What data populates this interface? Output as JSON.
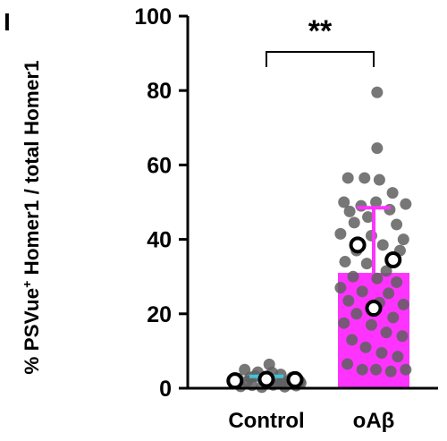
{
  "panel_label": "I",
  "chart_data": {
    "type": "bar",
    "ylabel_prefix": "% PSVue",
    "ylabel_sup": "+",
    "ylabel_suffix": " Homer1 / total Homer1",
    "ylim": [
      0,
      100
    ],
    "yticks": [
      0,
      20,
      40,
      60,
      80,
      100
    ],
    "categories": [
      "Control",
      "oAβ"
    ],
    "bars": [
      {
        "category": "Control",
        "mean": 2.0,
        "sd": 1.2,
        "color": "#40c4d8"
      },
      {
        "category": "oAβ",
        "mean": 31.0,
        "sd": 17.5,
        "color": "#ff33ff"
      }
    ],
    "significance": "**",
    "points": [
      {
        "category": "Control",
        "x": -0.5,
        "y": 2.6
      },
      {
        "category": "Control",
        "x": -0.34,
        "y": 1.8
      },
      {
        "category": "Control",
        "x": -0.2,
        "y": 3.3
      },
      {
        "category": "Control",
        "x": -0.05,
        "y": 2.2
      },
      {
        "category": "Control",
        "x": 0.1,
        "y": 4.2
      },
      {
        "category": "Control",
        "x": 0.28,
        "y": 1.5
      },
      {
        "category": "Control",
        "x": 0.45,
        "y": 2.9
      },
      {
        "category": "Control",
        "x": 0.58,
        "y": 1.9
      },
      {
        "category": "Control",
        "x": -0.45,
        "y": 0.5
      },
      {
        "category": "Control",
        "x": -0.25,
        "y": 0.8
      },
      {
        "category": "Control",
        "x": -0.08,
        "y": 0.3
      },
      {
        "category": "Control",
        "x": 0.12,
        "y": 0.9
      },
      {
        "category": "Control",
        "x": 0.32,
        "y": 0.4
      },
      {
        "category": "Control",
        "x": 0.52,
        "y": 0.7
      },
      {
        "category": "Control",
        "x": -0.38,
        "y": 5.0
      },
      {
        "category": "Control",
        "x": -0.15,
        "y": 4.3
      },
      {
        "category": "Control",
        "x": 0.05,
        "y": 6.4
      },
      {
        "category": "Control",
        "x": 0.25,
        "y": 3.7
      },
      {
        "category": "Control",
        "x": 0.4,
        "y": 2.1
      },
      {
        "category": "Control",
        "x": -0.55,
        "y": 1.2
      },
      {
        "category": "Control",
        "x": 0.6,
        "y": 1.4
      },
      {
        "category": "Control",
        "x": -0.28,
        "y": 2.9
      },
      {
        "category": "Control",
        "x": 0.18,
        "y": 1.6
      },
      {
        "category": "oAβ",
        "x": 0.06,
        "y": 79.5
      },
      {
        "category": "oAβ",
        "x": 0.06,
        "y": 64.5
      },
      {
        "category": "oAβ",
        "x": -0.45,
        "y": 56.5
      },
      {
        "category": "oAβ",
        "x": -0.16,
        "y": 56.5
      },
      {
        "category": "oAβ",
        "x": 0.1,
        "y": 56.0
      },
      {
        "category": "oAβ",
        "x": -0.52,
        "y": 50.0
      },
      {
        "category": "oAβ",
        "x": -0.22,
        "y": 49.0
      },
      {
        "category": "oAβ",
        "x": 0.04,
        "y": 50.0
      },
      {
        "category": "oAβ",
        "x": 0.33,
        "y": 52.5
      },
      {
        "category": "oAβ",
        "x": 0.56,
        "y": 49.5
      },
      {
        "category": "oAβ",
        "x": -0.42,
        "y": 47.5
      },
      {
        "category": "oAβ",
        "x": -0.1,
        "y": 46.0
      },
      {
        "category": "oAβ",
        "x": 0.28,
        "y": 48.0
      },
      {
        "category": "oAβ",
        "x": -0.34,
        "y": 44.5
      },
      {
        "category": "oAβ",
        "x": 0.4,
        "y": 44.0
      },
      {
        "category": "oAβ",
        "x": -0.58,
        "y": 41.5
      },
      {
        "category": "oAβ",
        "x": -0.04,
        "y": 41.0
      },
      {
        "category": "oAβ",
        "x": 0.52,
        "y": 40.0
      },
      {
        "category": "oAβ",
        "x": -0.3,
        "y": 37.0
      },
      {
        "category": "oAβ",
        "x": 0.16,
        "y": 38.5
      },
      {
        "category": "oAβ",
        "x": 0.46,
        "y": 37.0
      },
      {
        "category": "oAβ",
        "x": -0.5,
        "y": 34.0
      },
      {
        "category": "oAβ",
        "x": -0.12,
        "y": 33.5
      },
      {
        "category": "oAβ",
        "x": 0.22,
        "y": 31.5
      },
      {
        "category": "oAβ",
        "x": -0.36,
        "y": 30.0
      },
      {
        "category": "oAβ",
        "x": 0.06,
        "y": 29.5
      },
      {
        "category": "oAβ",
        "x": 0.4,
        "y": 28.5
      },
      {
        "category": "oAβ",
        "x": -0.58,
        "y": 27.0
      },
      {
        "category": "oAβ",
        "x": -0.2,
        "y": 26.0
      },
      {
        "category": "oAβ",
        "x": 0.26,
        "y": 25.5
      },
      {
        "category": "oAβ",
        "x": -0.44,
        "y": 23.5
      },
      {
        "category": "oAβ",
        "x": 0.1,
        "y": 23.0
      },
      {
        "category": "oAβ",
        "x": 0.52,
        "y": 22.5
      },
      {
        "category": "oAβ",
        "x": -0.3,
        "y": 20.0
      },
      {
        "category": "oAβ",
        "x": 0.34,
        "y": 19.0
      },
      {
        "category": "oAβ",
        "x": -0.52,
        "y": 17.5
      },
      {
        "category": "oAβ",
        "x": -0.04,
        "y": 17.0
      },
      {
        "category": "oAβ",
        "x": 0.22,
        "y": 15.0
      },
      {
        "category": "oAβ",
        "x": 0.5,
        "y": 14.0
      },
      {
        "category": "oAβ",
        "x": -0.38,
        "y": 13.0
      },
      {
        "category": "oAβ",
        "x": -0.14,
        "y": 11.0
      },
      {
        "category": "oAβ",
        "x": 0.14,
        "y": 9.5
      },
      {
        "category": "oAβ",
        "x": 0.42,
        "y": 8.5
      },
      {
        "category": "oAβ",
        "x": -0.46,
        "y": 6.5
      },
      {
        "category": "oAβ",
        "x": -0.2,
        "y": 5.0
      },
      {
        "category": "oAβ",
        "x": 0.04,
        "y": 5.0
      },
      {
        "category": "oAβ",
        "x": 0.3,
        "y": 4.5
      },
      {
        "category": "oAβ",
        "x": 0.56,
        "y": 5.0
      }
    ],
    "means": [
      {
        "category": "Control",
        "x": -0.55,
        "y": 2.0
      },
      {
        "category": "Control",
        "x": 0.0,
        "y": 2.4
      },
      {
        "category": "Control",
        "x": 0.5,
        "y": 2.3
      },
      {
        "category": "oAβ",
        "x": -0.28,
        "y": 38.5
      },
      {
        "category": "oAβ",
        "x": 0.34,
        "y": 34.5
      },
      {
        "category": "oAβ",
        "x": 0.0,
        "y": 21.5
      }
    ]
  }
}
